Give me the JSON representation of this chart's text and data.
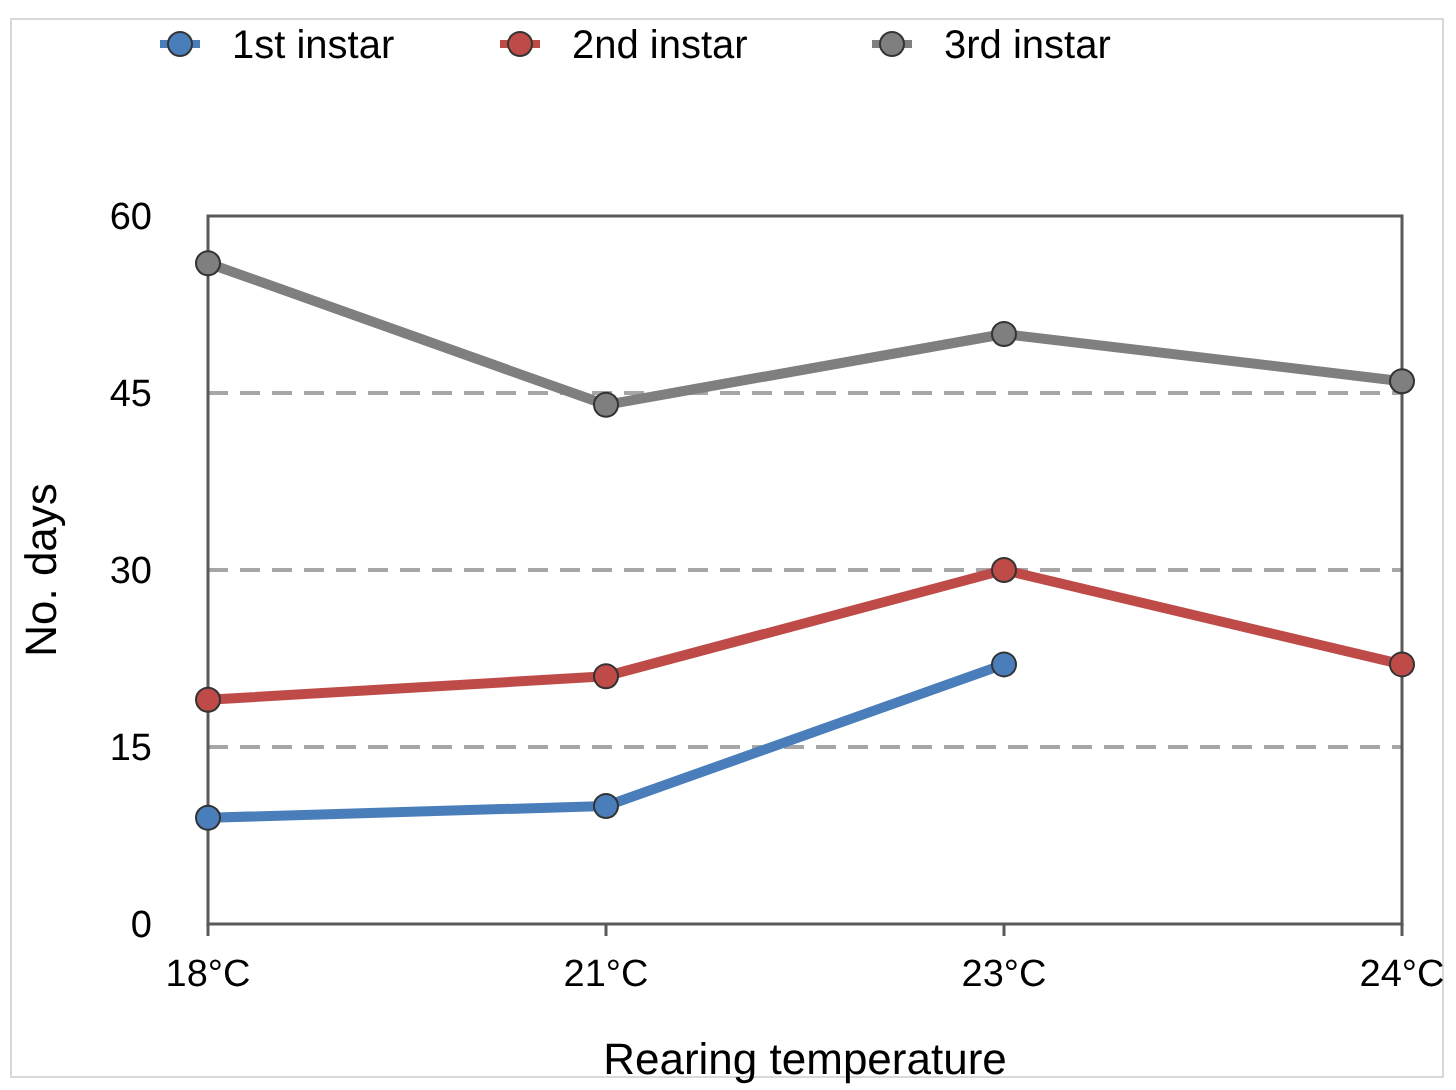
{
  "chart_data": {
    "type": "line",
    "xlabel": "Rearing temperature",
    "ylabel": "No. days",
    "categories": [
      "18°C",
      "21°C",
      "23°C",
      "24°C"
    ],
    "series": [
      {
        "name": "1st instar",
        "color": "#4a7ebb",
        "values": [
          9,
          10,
          22,
          null
        ]
      },
      {
        "name": "2nd instar",
        "color": "#be4b48",
        "values": [
          19,
          21,
          30,
          22
        ]
      },
      {
        "name": "3rd instar",
        "color": "#7f7f7f",
        "values": [
          56,
          44,
          50,
          46
        ]
      }
    ],
    "ylim": [
      0,
      60
    ],
    "yticks": [
      0,
      15,
      30,
      45,
      60
    ],
    "grid": "y",
    "legend": "top",
    "marker": "circle",
    "line_style": "solid"
  }
}
